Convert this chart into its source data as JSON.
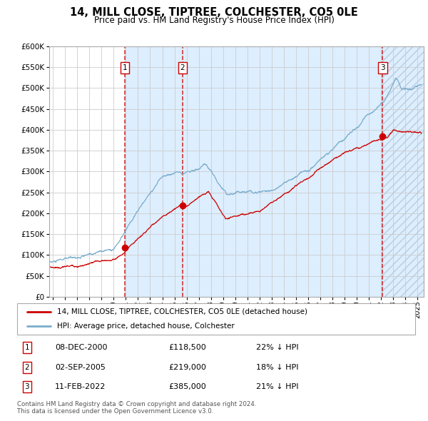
{
  "title": "14, MILL CLOSE, TIPTREE, COLCHESTER, CO5 0LE",
  "subtitle": "Price paid vs. HM Land Registry's House Price Index (HPI)",
  "legend_line1": "14, MILL CLOSE, TIPTREE, COLCHESTER, CO5 0LE (detached house)",
  "legend_line2": "HPI: Average price, detached house, Colchester",
  "footer1": "Contains HM Land Registry data © Crown copyright and database right 2024.",
  "footer2": "This data is licensed under the Open Government Licence v3.0.",
  "sale_color": "#cc0000",
  "hpi_color": "#7aadcc",
  "bg_color": "#ffffff",
  "grid_color": "#cccccc",
  "shade_color": "#ddeeff",
  "ylim": [
    0,
    600000
  ],
  "yticks": [
    0,
    50000,
    100000,
    150000,
    200000,
    250000,
    300000,
    350000,
    400000,
    450000,
    500000,
    550000,
    600000
  ],
  "xlim_start": 1994.7,
  "xlim_end": 2025.5,
  "sales": [
    {
      "year": 2000.92,
      "price": 118500,
      "label": "1",
      "date": "08-DEC-2000",
      "pct": "22% ↓ HPI"
    },
    {
      "year": 2005.67,
      "price": 219000,
      "label": "2",
      "date": "02-SEP-2005",
      "pct": "18% ↓ HPI"
    },
    {
      "year": 2022.12,
      "price": 385000,
      "label": "3",
      "date": "11-FEB-2022",
      "pct": "21% ↓ HPI"
    }
  ],
  "ownership_periods": [
    {
      "start": 2000.92,
      "end": 2005.67
    },
    {
      "start": 2005.67,
      "end": 2022.12
    },
    {
      "start": 2022.12,
      "end": 2025.5
    }
  ]
}
